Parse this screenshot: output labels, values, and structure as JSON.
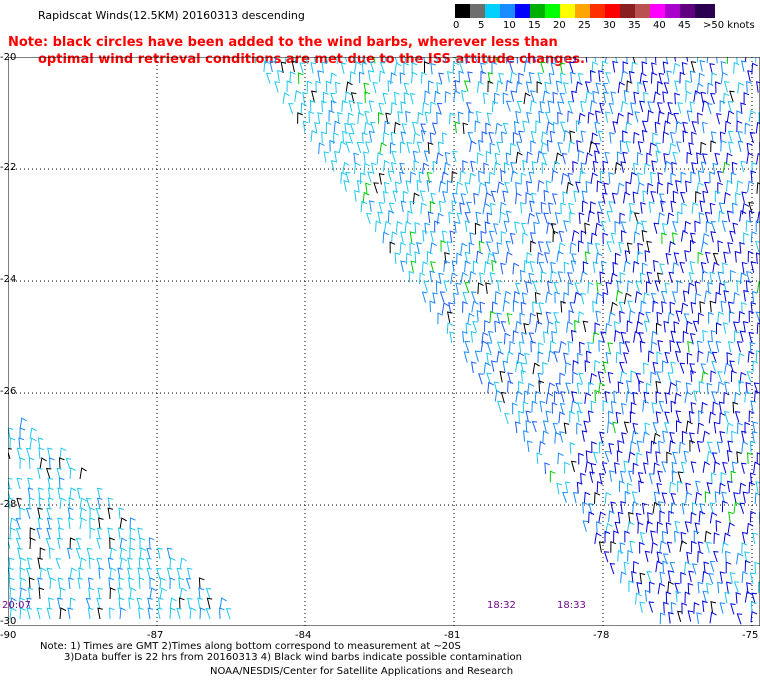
{
  "title": "Rapidscat Winds(12.5KM) 20160313 descending",
  "note": {
    "line1": "Note: black circles have been added to the wind barbs, wherever less than",
    "line2": "optimal wind retrieval conditions are met due to the ISS attitude changes."
  },
  "legend": {
    "colors": [
      "#000000",
      "#6e6e6e",
      "#00d0ff",
      "#1a8cff",
      "#0000ff",
      "#00b000",
      "#00ff00",
      "#ffff00",
      "#ffa500",
      "#ff3000",
      "#ff0000",
      "#8b2020",
      "#bb5050",
      "#ff00ff",
      "#aa00cc",
      "#600080",
      "#2a0050"
    ],
    "labels": [
      "0",
      "5",
      "10",
      "15",
      "20",
      "25",
      "30",
      "35",
      "40",
      "45",
      ">50 knots"
    ]
  },
  "axes": {
    "lat_labels": [
      "-20",
      "-22",
      "-24",
      "-26",
      "-28",
      "-30"
    ],
    "lon_labels": [
      "-90",
      "-87",
      "-84",
      "-81",
      "-78",
      "-75"
    ]
  },
  "time_labels": [
    "20:07",
    "18:32",
    "18:33"
  ],
  "footnote": {
    "line1": "Note: 1) Times are GMT 2)Times along bottom correspond to measurement at ~20S",
    "line2": "3)Data buffer is 22 hrs from 20160313 4) Black wind barbs indicate possible contamination"
  },
  "credit": "NOAA/NESDIS/Center for Satellite Applications and Research"
}
